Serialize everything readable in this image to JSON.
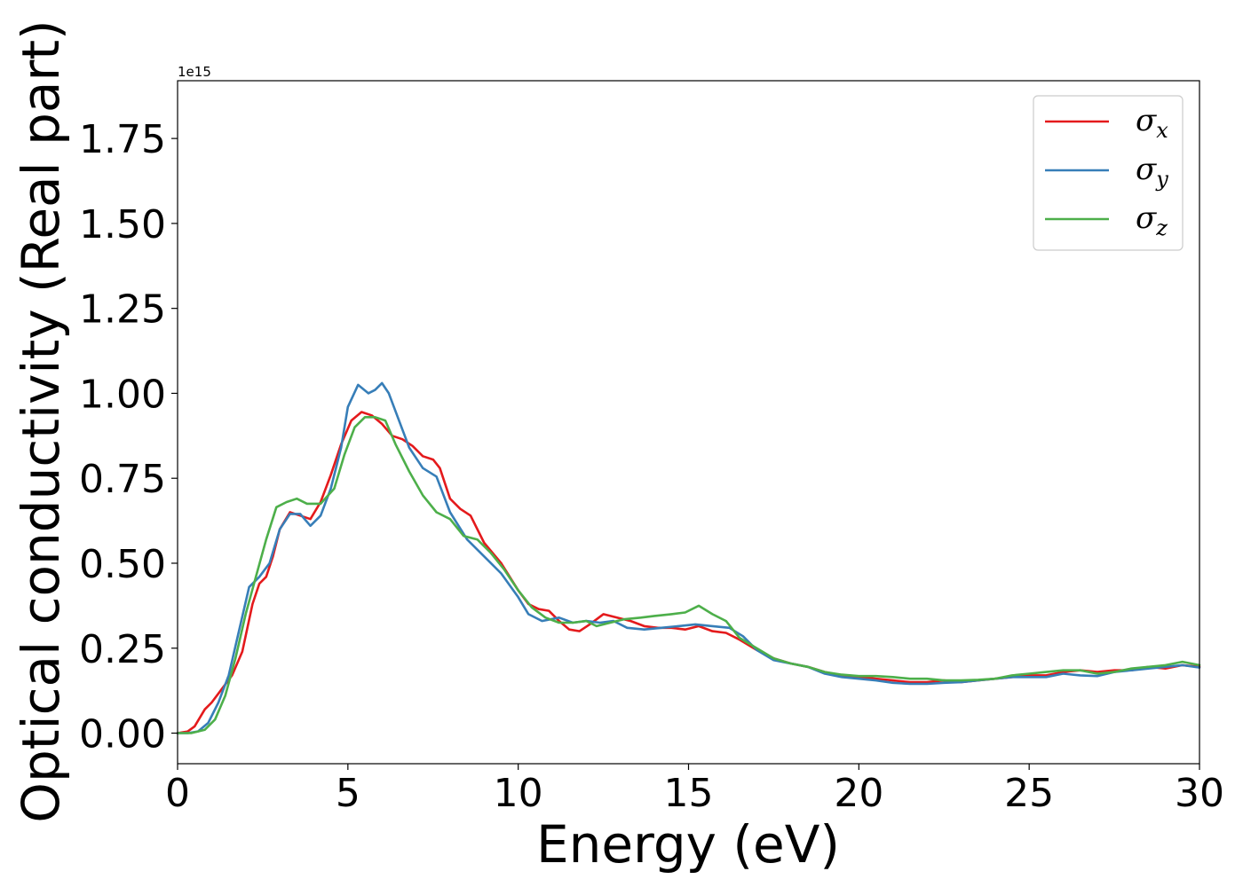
{
  "chart_data": {
    "type": "line",
    "title": "",
    "xlabel": "Energy (eV)",
    "ylabel": "Optical conductivity (Real part)",
    "offset_text": "1e15",
    "xlim": [
      0,
      30
    ],
    "ylim": [
      -0.09,
      1.92
    ],
    "x_ticks": [
      0,
      5,
      10,
      15,
      20,
      25,
      30
    ],
    "x_tick_labels": [
      "0",
      "5",
      "10",
      "15",
      "20",
      "25",
      "30"
    ],
    "y_ticks": [
      0.0,
      0.25,
      0.5,
      0.75,
      1.0,
      1.25,
      1.5,
      1.75
    ],
    "y_tick_labels": [
      "0.00",
      "0.25",
      "0.50",
      "0.75",
      "1.00",
      "1.25",
      "1.50",
      "1.75"
    ],
    "grid": false,
    "legend_position": "top-right",
    "series": [
      {
        "name": "σx",
        "legend_base": "σ",
        "legend_sub": "x",
        "color": "#e41a1c",
        "points": [
          [
            0,
            0
          ],
          [
            0.3,
            0.005
          ],
          [
            0.5,
            0.02
          ],
          [
            0.8,
            0.07
          ],
          [
            1.0,
            0.09
          ],
          [
            1.3,
            0.13
          ],
          [
            1.6,
            0.17
          ],
          [
            1.9,
            0.24
          ],
          [
            2.2,
            0.38
          ],
          [
            2.4,
            0.44
          ],
          [
            2.6,
            0.46
          ],
          [
            2.8,
            0.52
          ],
          [
            3.0,
            0.6
          ],
          [
            3.3,
            0.65
          ],
          [
            3.6,
            0.64
          ],
          [
            3.9,
            0.63
          ],
          [
            4.2,
            0.68
          ],
          [
            4.5,
            0.76
          ],
          [
            4.8,
            0.85
          ],
          [
            5.1,
            0.92
          ],
          [
            5.4,
            0.945
          ],
          [
            5.7,
            0.935
          ],
          [
            6.0,
            0.91
          ],
          [
            6.3,
            0.875
          ],
          [
            6.6,
            0.865
          ],
          [
            6.9,
            0.845
          ],
          [
            7.2,
            0.815
          ],
          [
            7.5,
            0.805
          ],
          [
            7.7,
            0.78
          ],
          [
            8.0,
            0.69
          ],
          [
            8.3,
            0.66
          ],
          [
            8.6,
            0.64
          ],
          [
            9.0,
            0.56
          ],
          [
            9.5,
            0.5
          ],
          [
            10.0,
            0.42
          ],
          [
            10.3,
            0.38
          ],
          [
            10.6,
            0.365
          ],
          [
            10.9,
            0.36
          ],
          [
            11.2,
            0.33
          ],
          [
            11.5,
            0.305
          ],
          [
            11.8,
            0.3
          ],
          [
            12.1,
            0.32
          ],
          [
            12.5,
            0.35
          ],
          [
            12.9,
            0.34
          ],
          [
            13.3,
            0.33
          ],
          [
            13.7,
            0.315
          ],
          [
            14.1,
            0.31
          ],
          [
            14.5,
            0.31
          ],
          [
            14.9,
            0.305
          ],
          [
            15.3,
            0.315
          ],
          [
            15.7,
            0.3
          ],
          [
            16.1,
            0.295
          ],
          [
            16.5,
            0.275
          ],
          [
            17.0,
            0.245
          ],
          [
            17.5,
            0.22
          ],
          [
            18.0,
            0.205
          ],
          [
            18.5,
            0.195
          ],
          [
            19.0,
            0.18
          ],
          [
            19.5,
            0.17
          ],
          [
            20.0,
            0.165
          ],
          [
            20.5,
            0.16
          ],
          [
            21.0,
            0.155
          ],
          [
            21.5,
            0.15
          ],
          [
            22.0,
            0.15
          ],
          [
            22.5,
            0.155
          ],
          [
            23.0,
            0.15
          ],
          [
            23.5,
            0.155
          ],
          [
            24.0,
            0.16
          ],
          [
            24.5,
            0.165
          ],
          [
            25.0,
            0.17
          ],
          [
            25.5,
            0.17
          ],
          [
            26.0,
            0.18
          ],
          [
            26.5,
            0.185
          ],
          [
            27.0,
            0.18
          ],
          [
            27.5,
            0.185
          ],
          [
            28.0,
            0.185
          ],
          [
            28.5,
            0.195
          ],
          [
            29.0,
            0.19
          ],
          [
            29.5,
            0.2
          ],
          [
            30.0,
            0.195
          ]
        ]
      },
      {
        "name": "σy",
        "legend_base": "σ",
        "legend_sub": "y",
        "color": "#377eb8",
        "points": [
          [
            0,
            0
          ],
          [
            0.3,
            0.0
          ],
          [
            0.6,
            0.005
          ],
          [
            0.9,
            0.03
          ],
          [
            1.2,
            0.09
          ],
          [
            1.5,
            0.17
          ],
          [
            1.8,
            0.3
          ],
          [
            2.1,
            0.43
          ],
          [
            2.4,
            0.46
          ],
          [
            2.7,
            0.5
          ],
          [
            3.0,
            0.6
          ],
          [
            3.3,
            0.645
          ],
          [
            3.6,
            0.645
          ],
          [
            3.9,
            0.61
          ],
          [
            4.2,
            0.64
          ],
          [
            4.5,
            0.72
          ],
          [
            4.8,
            0.84
          ],
          [
            5.0,
            0.96
          ],
          [
            5.3,
            1.025
          ],
          [
            5.6,
            1.0
          ],
          [
            5.8,
            1.01
          ],
          [
            6.0,
            1.03
          ],
          [
            6.2,
            1.0
          ],
          [
            6.5,
            0.92
          ],
          [
            6.8,
            0.84
          ],
          [
            7.2,
            0.78
          ],
          [
            7.6,
            0.755
          ],
          [
            8.0,
            0.65
          ],
          [
            8.5,
            0.57
          ],
          [
            9.0,
            0.52
          ],
          [
            9.5,
            0.47
          ],
          [
            10.0,
            0.4
          ],
          [
            10.3,
            0.35
          ],
          [
            10.7,
            0.33
          ],
          [
            11.2,
            0.34
          ],
          [
            11.6,
            0.325
          ],
          [
            12.0,
            0.33
          ],
          [
            12.4,
            0.325
          ],
          [
            12.8,
            0.33
          ],
          [
            13.2,
            0.31
          ],
          [
            13.7,
            0.305
          ],
          [
            14.2,
            0.31
          ],
          [
            14.7,
            0.315
          ],
          [
            15.2,
            0.32
          ],
          [
            15.7,
            0.315
          ],
          [
            16.2,
            0.31
          ],
          [
            16.6,
            0.285
          ],
          [
            17.0,
            0.245
          ],
          [
            17.5,
            0.215
          ],
          [
            18.0,
            0.205
          ],
          [
            18.5,
            0.195
          ],
          [
            19.0,
            0.175
          ],
          [
            19.5,
            0.165
          ],
          [
            20.0,
            0.16
          ],
          [
            20.5,
            0.155
          ],
          [
            21.0,
            0.148
          ],
          [
            21.5,
            0.145
          ],
          [
            22.0,
            0.145
          ],
          [
            22.5,
            0.148
          ],
          [
            23.0,
            0.15
          ],
          [
            23.5,
            0.155
          ],
          [
            24.0,
            0.16
          ],
          [
            24.5,
            0.165
          ],
          [
            25.0,
            0.165
          ],
          [
            25.5,
            0.165
          ],
          [
            26.0,
            0.175
          ],
          [
            26.5,
            0.17
          ],
          [
            27.0,
            0.168
          ],
          [
            27.5,
            0.18
          ],
          [
            28.0,
            0.185
          ],
          [
            28.5,
            0.19
          ],
          [
            29.0,
            0.195
          ],
          [
            29.5,
            0.2
          ],
          [
            30.0,
            0.193
          ]
        ]
      },
      {
        "name": "σz",
        "legend_base": "σ",
        "legend_sub": "z",
        "color": "#4daf4a",
        "points": [
          [
            0,
            0
          ],
          [
            0.4,
            0.0
          ],
          [
            0.8,
            0.01
          ],
          [
            1.1,
            0.04
          ],
          [
            1.4,
            0.11
          ],
          [
            1.7,
            0.22
          ],
          [
            2.0,
            0.35
          ],
          [
            2.3,
            0.46
          ],
          [
            2.6,
            0.57
          ],
          [
            2.9,
            0.665
          ],
          [
            3.2,
            0.68
          ],
          [
            3.5,
            0.69
          ],
          [
            3.8,
            0.675
          ],
          [
            4.2,
            0.675
          ],
          [
            4.6,
            0.72
          ],
          [
            4.9,
            0.82
          ],
          [
            5.2,
            0.9
          ],
          [
            5.5,
            0.93
          ],
          [
            5.8,
            0.93
          ],
          [
            6.1,
            0.92
          ],
          [
            6.4,
            0.85
          ],
          [
            6.8,
            0.77
          ],
          [
            7.2,
            0.7
          ],
          [
            7.6,
            0.65
          ],
          [
            8.0,
            0.63
          ],
          [
            8.4,
            0.58
          ],
          [
            8.8,
            0.57
          ],
          [
            9.2,
            0.53
          ],
          [
            9.6,
            0.48
          ],
          [
            10.0,
            0.42
          ],
          [
            10.4,
            0.37
          ],
          [
            10.8,
            0.34
          ],
          [
            11.2,
            0.325
          ],
          [
            11.6,
            0.325
          ],
          [
            12.0,
            0.33
          ],
          [
            12.3,
            0.315
          ],
          [
            12.7,
            0.325
          ],
          [
            13.1,
            0.335
          ],
          [
            13.6,
            0.34
          ],
          [
            14.0,
            0.345
          ],
          [
            14.5,
            0.35
          ],
          [
            14.9,
            0.355
          ],
          [
            15.3,
            0.375
          ],
          [
            15.7,
            0.35
          ],
          [
            16.1,
            0.33
          ],
          [
            16.5,
            0.28
          ],
          [
            17.0,
            0.25
          ],
          [
            17.5,
            0.22
          ],
          [
            18.0,
            0.205
          ],
          [
            18.5,
            0.195
          ],
          [
            19.0,
            0.18
          ],
          [
            19.5,
            0.172
          ],
          [
            20.0,
            0.168
          ],
          [
            20.5,
            0.168
          ],
          [
            21.0,
            0.165
          ],
          [
            21.5,
            0.16
          ],
          [
            22.0,
            0.16
          ],
          [
            22.5,
            0.155
          ],
          [
            23.0,
            0.155
          ],
          [
            23.5,
            0.157
          ],
          [
            24.0,
            0.16
          ],
          [
            24.5,
            0.17
          ],
          [
            25.0,
            0.175
          ],
          [
            25.5,
            0.18
          ],
          [
            26.0,
            0.185
          ],
          [
            26.5,
            0.185
          ],
          [
            27.0,
            0.175
          ],
          [
            27.5,
            0.18
          ],
          [
            28.0,
            0.19
          ],
          [
            28.5,
            0.195
          ],
          [
            29.0,
            0.2
          ],
          [
            29.5,
            0.21
          ],
          [
            30.0,
            0.2
          ]
        ]
      }
    ]
  }
}
